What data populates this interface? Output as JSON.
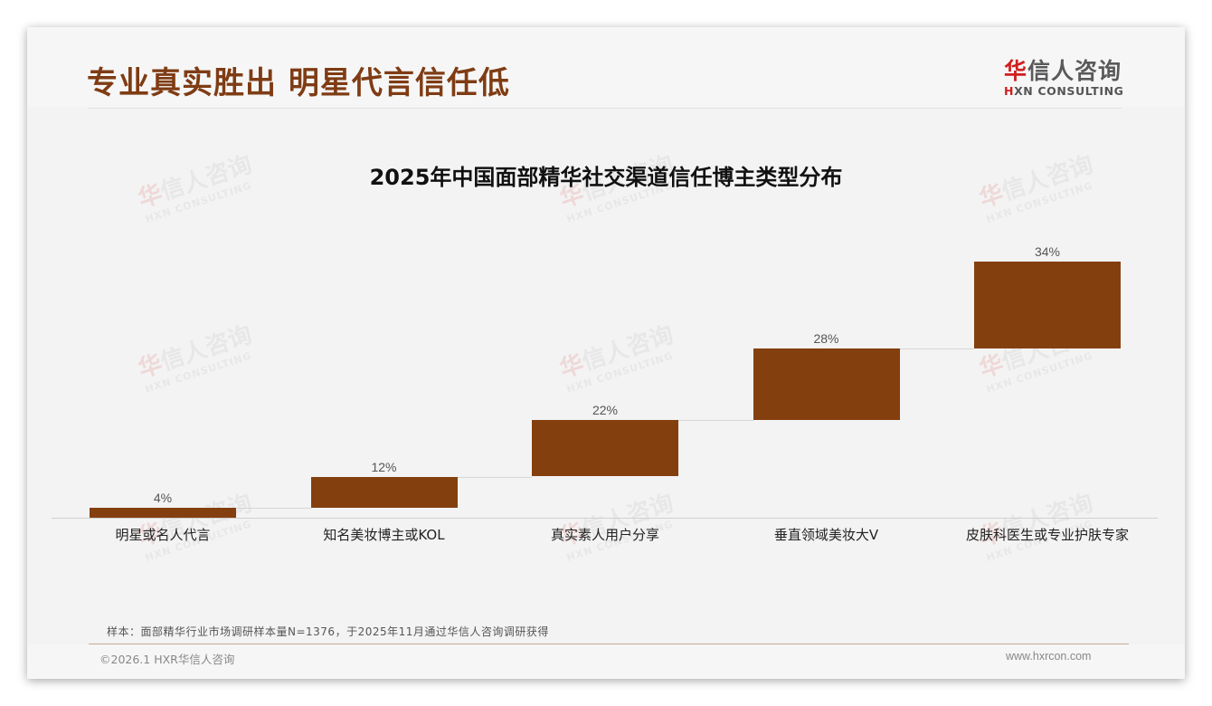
{
  "header": {
    "title": "专业真实胜出 明星代言信任低",
    "logo": {
      "cn_mark": "华",
      "cn_rest": "信人咨询",
      "en_mark": "H",
      "en_rest": "XN CONSULTING"
    }
  },
  "watermark": {
    "cn_mark": "华",
    "cn_rest": "信人咨询",
    "en": "HXN CONSULTING"
  },
  "colors": {
    "title": "#7f3c14",
    "bar": "#843f0f",
    "logo_red": "#d01f1f",
    "footer_rule": "#c9a890"
  },
  "chart_data": {
    "type": "bar",
    "subtype": "waterfall",
    "title": "2025年中国面部精华社交渠道信任博主类型分布",
    "categories": [
      "明星或名人代言",
      "知名美妆博主或KOL",
      "真实素人用户分享",
      "垂直领域美妆大V",
      "皮肤科医生或专业护肤专家"
    ],
    "values": [
      4,
      12,
      22,
      28,
      34
    ],
    "value_labels": [
      "4%",
      "12%",
      "22%",
      "28%",
      "34%"
    ],
    "cumulative": [
      4,
      16,
      38,
      66,
      100
    ],
    "xlabel": "",
    "ylabel": "",
    "ylim": [
      0,
      100
    ],
    "unit": "%",
    "grid": false,
    "legend": null
  },
  "footer": {
    "sample_note": "样本：面部精华行业市场调研样本量N=1376，于2025年11月通过华信人咨询调研获得",
    "copyright": "©2026.1 HXR华信人咨询",
    "website": "www.hxrcon.com"
  }
}
